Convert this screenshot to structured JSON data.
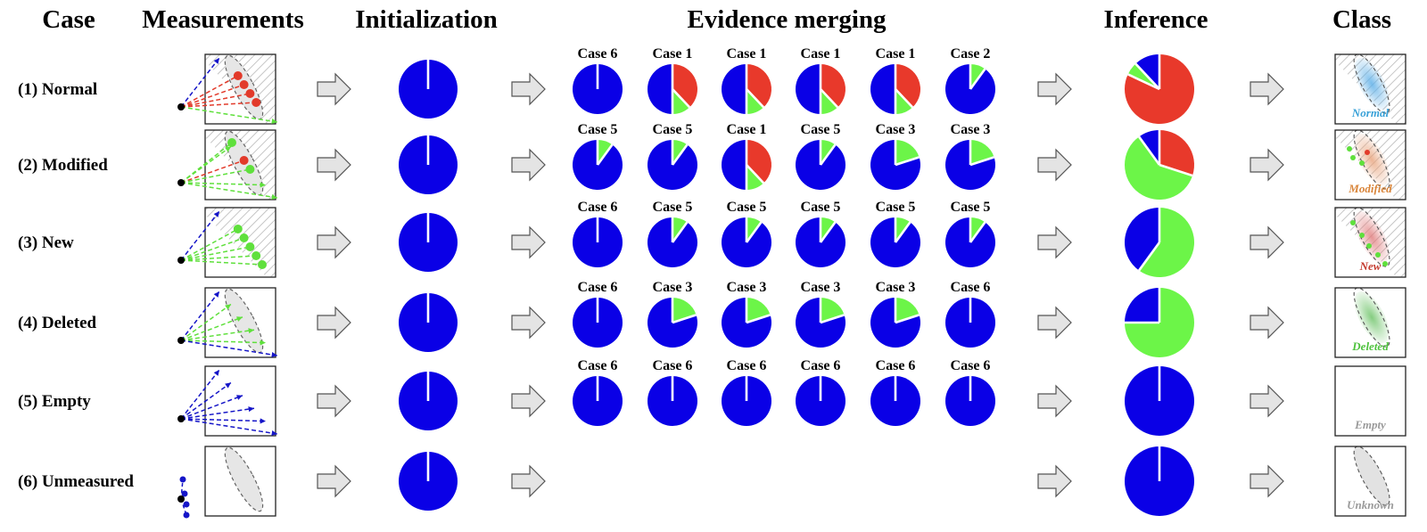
{
  "headers": {
    "case": "Case",
    "measurements": "Measurements",
    "initialization": "Initialization",
    "evidence_merging": "Evidence merging",
    "inference": "Inference",
    "class": "Class"
  },
  "colors": {
    "empty_mass": "#0a00e6",
    "occupied_mass": "#e8392b",
    "free_mass": "#6cf548",
    "ray_blue": "#1515c8",
    "ray_red": "#e23a2a",
    "ray_green": "#5fe03c",
    "label_normal": "#3aa2d8",
    "label_modified": "#d9853a",
    "label_new": "#c43a2e",
    "label_deleted": "#4ec23d",
    "label_empty": "#9a9a9a",
    "label_unknown": "#9a9a9a",
    "arrow_fill": "#e4e4e4",
    "arrow_stroke": "#555555"
  },
  "rows": [
    {
      "label": "(1) Normal",
      "class_label": "Normal",
      "class_color_key": "label_normal",
      "class_blob": "blue",
      "init": [
        0,
        0,
        1
      ],
      "merge": [
        {
          "label": "Case 6",
          "masses": [
            0,
            0,
            1
          ]
        },
        {
          "label": "Case 1",
          "masses": [
            0.38,
            0.12,
            0.5
          ]
        },
        {
          "label": "Case 1",
          "masses": [
            0.38,
            0.12,
            0.5
          ]
        },
        {
          "label": "Case 1",
          "masses": [
            0.38,
            0.12,
            0.5
          ]
        },
        {
          "label": "Case 1",
          "masses": [
            0.38,
            0.12,
            0.5
          ]
        },
        {
          "label": "Case 2",
          "masses": [
            0,
            0.1,
            0.9
          ]
        }
      ],
      "inference": [
        0.82,
        0.06,
        0.12
      ],
      "measurement": {
        "type": "rays",
        "rays": [
          [
            "blue",
            "end"
          ],
          [
            "red",
            "hit"
          ],
          [
            "red",
            "hit"
          ],
          [
            "red",
            "hit"
          ],
          [
            "red",
            "hit"
          ],
          [
            "green",
            "end"
          ]
        ],
        "shaded": true,
        "ellipse": true
      }
    },
    {
      "label": "(2) Modified",
      "class_label": "Modified",
      "class_color_key": "label_modified",
      "class_blob": "orange",
      "init": [
        0,
        0,
        1
      ],
      "merge": [
        {
          "label": "Case 5",
          "masses": [
            0,
            0.1,
            0.9
          ]
        },
        {
          "label": "Case 5",
          "masses": [
            0,
            0.1,
            0.9
          ]
        },
        {
          "label": "Case 1",
          "masses": [
            0.38,
            0.12,
            0.5
          ]
        },
        {
          "label": "Case 5",
          "masses": [
            0,
            0.1,
            0.9
          ]
        },
        {
          "label": "Case 3",
          "masses": [
            0,
            0.2,
            0.8
          ]
        },
        {
          "label": "Case 3",
          "masses": [
            0,
            0.2,
            0.8
          ]
        }
      ],
      "inference": [
        0.3,
        0.6,
        0.1
      ],
      "measurement": {
        "type": "rays",
        "rays": [
          [
            "green",
            "hit"
          ],
          [
            "green",
            "end"
          ],
          [
            "red",
            "hit"
          ],
          [
            "green",
            "hit"
          ],
          [
            "green",
            "end"
          ],
          [
            "green",
            "end"
          ]
        ],
        "shaded": true,
        "ellipse": true
      }
    },
    {
      "label": "(3) New",
      "class_label": "New",
      "class_color_key": "label_new",
      "class_blob": "red",
      "init": [
        0,
        0,
        1
      ],
      "merge": [
        {
          "label": "Case 6",
          "masses": [
            0,
            0,
            1
          ]
        },
        {
          "label": "Case 5",
          "masses": [
            0,
            0.1,
            0.9
          ]
        },
        {
          "label": "Case 5",
          "masses": [
            0,
            0.1,
            0.9
          ]
        },
        {
          "label": "Case 5",
          "masses": [
            0,
            0.1,
            0.9
          ]
        },
        {
          "label": "Case 5",
          "masses": [
            0,
            0.1,
            0.9
          ]
        },
        {
          "label": "Case 5",
          "masses": [
            0,
            0.1,
            0.9
          ]
        }
      ],
      "inference": [
        0,
        0.6,
        0.4
      ],
      "measurement": {
        "type": "rays",
        "rays": [
          [
            "blue",
            "end"
          ],
          [
            "green",
            "hit"
          ],
          [
            "green",
            "hit"
          ],
          [
            "green",
            "hit"
          ],
          [
            "green",
            "hit"
          ],
          [
            "green",
            "hit"
          ]
        ],
        "shaded": true,
        "ellipse": false
      }
    },
    {
      "label": "(4) Deleted",
      "class_label": "Deleted",
      "class_color_key": "label_deleted",
      "class_blob": "green",
      "init": [
        0,
        0,
        1
      ],
      "merge": [
        {
          "label": "Case 6",
          "masses": [
            0,
            0,
            1
          ]
        },
        {
          "label": "Case 3",
          "masses": [
            0,
            0.2,
            0.8
          ]
        },
        {
          "label": "Case 3",
          "masses": [
            0,
            0.2,
            0.8
          ]
        },
        {
          "label": "Case 3",
          "masses": [
            0,
            0.2,
            0.8
          ]
        },
        {
          "label": "Case 3",
          "masses": [
            0,
            0.2,
            0.8
          ]
        },
        {
          "label": "Case 6",
          "masses": [
            0,
            0,
            1
          ]
        }
      ],
      "inference": [
        0,
        0.75,
        0.25
      ],
      "measurement": {
        "type": "rays",
        "rays": [
          [
            "blue",
            "end"
          ],
          [
            "green",
            "end"
          ],
          [
            "green",
            "end"
          ],
          [
            "green",
            "end"
          ],
          [
            "green",
            "end"
          ],
          [
            "blue",
            "end"
          ]
        ],
        "shaded": false,
        "ellipse": true
      }
    },
    {
      "label": "(5) Empty",
      "class_label": "Empty",
      "class_color_key": "label_empty",
      "class_blob": "none",
      "init": [
        0,
        0,
        1
      ],
      "merge": [
        {
          "label": "Case 6",
          "masses": [
            0,
            0,
            1
          ]
        },
        {
          "label": "Case 6",
          "masses": [
            0,
            0,
            1
          ]
        },
        {
          "label": "Case 6",
          "masses": [
            0,
            0,
            1
          ]
        },
        {
          "label": "Case 6",
          "masses": [
            0,
            0,
            1
          ]
        },
        {
          "label": "Case 6",
          "masses": [
            0,
            0,
            1
          ]
        },
        {
          "label": "Case 6",
          "masses": [
            0,
            0,
            1
          ]
        }
      ],
      "inference": [
        0,
        0,
        1
      ],
      "measurement": {
        "type": "rays",
        "rays": [
          [
            "blue",
            "end"
          ],
          [
            "blue",
            "end"
          ],
          [
            "blue",
            "end"
          ],
          [
            "blue",
            "end"
          ],
          [
            "blue",
            "end"
          ],
          [
            "blue",
            "end"
          ]
        ],
        "shaded": false,
        "ellipse": false
      }
    },
    {
      "label": "(6) Unmeasured",
      "class_label": "Unknown",
      "class_color_key": "label_unknown",
      "class_blob": "none",
      "init": [
        0,
        0,
        1
      ],
      "merge": [],
      "inference": [
        0,
        0,
        1
      ],
      "measurement": {
        "type": "short",
        "rays": [],
        "shaded": false,
        "ellipse": true
      }
    }
  ]
}
